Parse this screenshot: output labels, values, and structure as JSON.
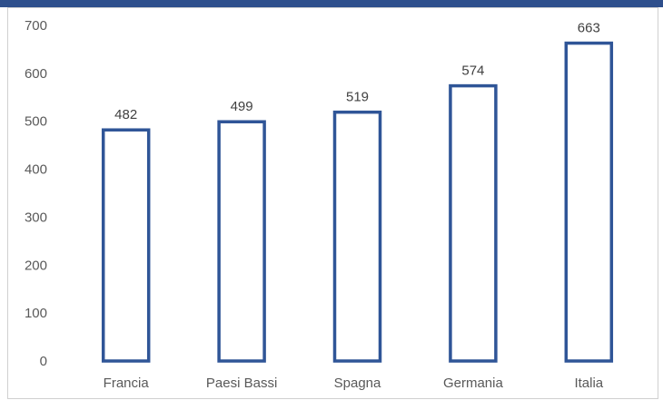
{
  "header": {
    "title_fragment": ""
  },
  "chart_data": {
    "type": "bar",
    "title": "",
    "xlabel": "",
    "ylabel": "",
    "categories": [
      "Francia",
      "Paesi Bassi",
      "Spagna",
      "Germania",
      "Italia"
    ],
    "values": [
      482,
      499,
      519,
      574,
      663
    ],
    "ylim": [
      0,
      700
    ],
    "yticks": [
      0,
      100,
      200,
      300,
      400,
      500,
      600,
      700
    ],
    "data_labels": true,
    "grid": false,
    "legend": "none",
    "colors": {
      "bar_outline": "#2f5597",
      "bar_fill": "#ffffff",
      "header": "#2e4f8c"
    }
  }
}
